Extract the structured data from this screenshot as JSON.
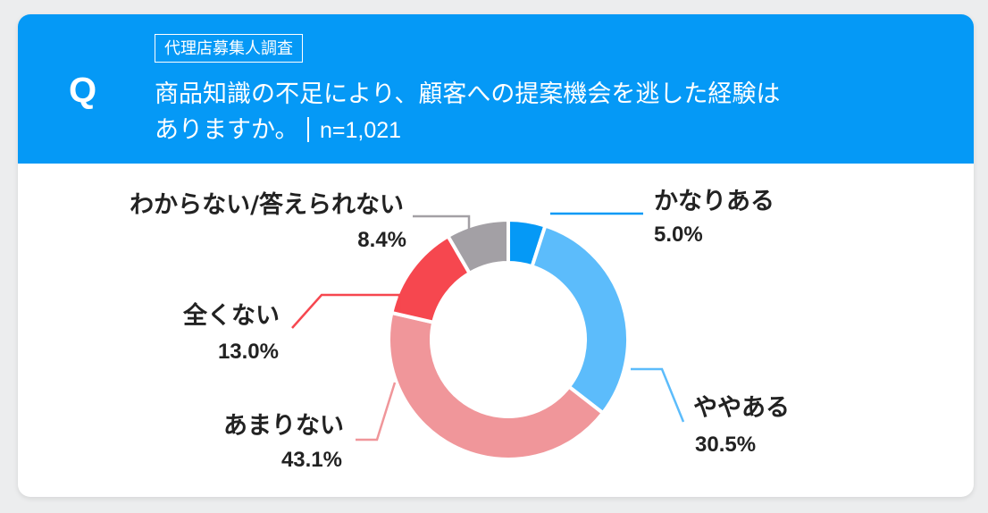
{
  "header": {
    "q_mark": "Q",
    "survey_tag": "代理店募集人調査",
    "question_line1": "商品知識の不足により、顧客への提案機会を逃した経験は",
    "question_line2": "ありますか。",
    "sample": "n=1,021"
  },
  "chart_data": {
    "type": "pie",
    "variant": "donut",
    "title": "",
    "series": [
      {
        "name": "かなりある",
        "value": 5.0,
        "label": "5.0%",
        "color": "#0599f6"
      },
      {
        "name": "ややある",
        "value": 30.5,
        "label": "30.5%",
        "color": "#5cbcfb"
      },
      {
        "name": "あまりない",
        "value": 43.1,
        "label": "43.1%",
        "color": "#f0969a"
      },
      {
        "name": "全くない",
        "value": 13.0,
        "label": "13.0%",
        "color": "#f6474f"
      },
      {
        "name": "わからない/答えられない",
        "value": 8.4,
        "label": "8.4%",
        "color": "#a3a0a5"
      }
    ],
    "legend": "none",
    "start": "top",
    "direction": "clockwise"
  }
}
